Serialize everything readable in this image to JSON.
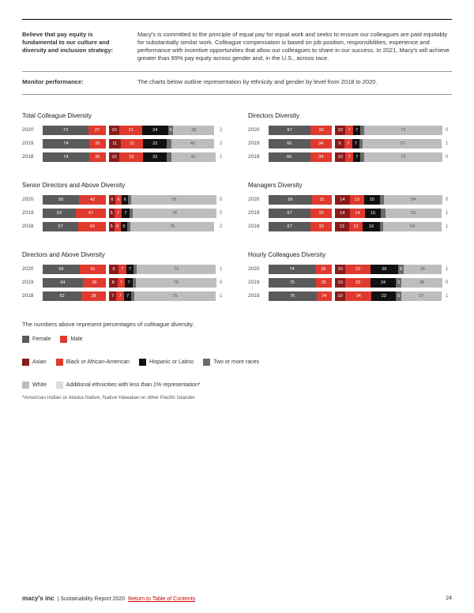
{
  "colors": {
    "female": "#5a5a5a",
    "male": "#e03a2f",
    "asian": "#8a1c1c",
    "black": "#e03a2f",
    "hispanic": "#111111",
    "two": "#6b6b6b",
    "white": "#bdbdbd",
    "other": "#dcdcdc"
  },
  "intro": {
    "label1": "Believe that pay equity is fundamental to our culture and diversity and inclusion strategy:",
    "text1": "Macy's is committed to the principle of equal pay for equal work and seeks to ensure our colleagues are paid equitably for substantially similar work. Colleague compensation is based on job position, responsibilities, experience and performance with incentive opportunities that allow our colleagues to share in our success. In 2021, Macy's will achieve greater than 99% pay equity across gender and, in the U.S., across race.",
    "label2": "Monitor performance:",
    "text2": "The charts below outline representation by ethnicity and gender by level from 2018 to 2020."
  },
  "bar_widths": {
    "gender": 80,
    "ethnicity": 130
  },
  "charts": [
    {
      "title": "Total Colleague Diversity",
      "rows": [
        {
          "year": "2020",
          "gender": {
            "female": 73,
            "male": 27
          },
          "eth": {
            "asian": 10,
            "black": 21,
            "hispanic": 24,
            "two": 5,
            "white": 38
          },
          "rem": 2
        },
        {
          "year": "2019",
          "gender": {
            "female": 74,
            "male": 26
          },
          "eth": {
            "asian": 11,
            "black": 21,
            "hispanic": 22,
            "two": 4,
            "white": 40
          },
          "rem": 2
        },
        {
          "year": "2018",
          "gender": {
            "female": 74,
            "male": 26
          },
          "eth": {
            "asian": 10,
            "black": 22,
            "hispanic": 22,
            "two": 4,
            "white": 41
          },
          "rem": 1
        }
      ]
    },
    {
      "title": "Directors Diversity",
      "rows": [
        {
          "year": "2020",
          "gender": {
            "female": 67,
            "male": 33
          },
          "eth": {
            "asian": 10,
            "black": 7,
            "hispanic": 7,
            "two": 3,
            "white": 73
          },
          "rem": 0
        },
        {
          "year": "2019",
          "gender": {
            "female": 66,
            "male": 34
          },
          "eth": {
            "asian": 9,
            "black": 7,
            "hispanic": 7,
            "two": 3,
            "white": 73
          },
          "rem": 1
        },
        {
          "year": "2018",
          "gender": {
            "female": 66,
            "male": 34
          },
          "eth": {
            "asian": 10,
            "black": 7,
            "hispanic": 7,
            "two": 3,
            "white": 73
          },
          "rem": 0
        }
      ]
    },
    {
      "title": "Senior Directors and Above Diversity",
      "rows": [
        {
          "year": "2020",
          "gender": {
            "female": 58,
            "male": 42
          },
          "eth": {
            "asian": 6,
            "black": 6,
            "hispanic": 6,
            "two": 3,
            "white": 79
          },
          "rem": 0
        },
        {
          "year": "2019",
          "gender": {
            "female": 53,
            "male": 47
          },
          "eth": {
            "asian": 5,
            "black": 7,
            "hispanic": 7,
            "two": 3,
            "white": 78
          },
          "rem": 0
        },
        {
          "year": "2018",
          "gender": {
            "female": 57,
            "male": 43
          },
          "eth": {
            "asian": 5,
            "black": 6,
            "hispanic": 6,
            "two": 3,
            "white": 78
          },
          "rem": 2
        }
      ]
    },
    {
      "title": "Managers Diversity",
      "rows": [
        {
          "year": "2020",
          "gender": {
            "female": 69,
            "male": 31
          },
          "eth": {
            "asian": 14,
            "black": 13,
            "hispanic": 15,
            "two": 4,
            "white": 54
          },
          "rem": 0
        },
        {
          "year": "2019",
          "gender": {
            "female": 67,
            "male": 33
          },
          "eth": {
            "asian": 14,
            "black": 14,
            "hispanic": 15,
            "two": 4,
            "white": 52
          },
          "rem": 1
        },
        {
          "year": "2018",
          "gender": {
            "female": 67,
            "male": 33
          },
          "eth": {
            "asian": 13,
            "black": 13,
            "hispanic": 16,
            "two": 3,
            "white": 54
          },
          "rem": 1
        }
      ]
    },
    {
      "title": "Directors and Above Diversity",
      "rows": [
        {
          "year": "2020",
          "gender": {
            "female": 59,
            "male": 41
          },
          "eth": {
            "asian": 9,
            "black": 7,
            "hispanic": 7,
            "two": 3,
            "white": 73
          },
          "rem": 1
        },
        {
          "year": "2019",
          "gender": {
            "female": 64,
            "male": 36
          },
          "eth": {
            "asian": 8,
            "black": 7,
            "hispanic": 7,
            "two": 3,
            "white": 75
          },
          "rem": 0
        },
        {
          "year": "2018",
          "gender": {
            "female": 62,
            "male": 38
          },
          "eth": {
            "asian": 7,
            "black": 7,
            "hispanic": 7,
            "two": 3,
            "white": 75
          },
          "rem": 1
        }
      ]
    },
    {
      "title": "Hourly Colleagues Diversity",
      "rows": [
        {
          "year": "2020",
          "gender": {
            "female": 74,
            "male": 26
          },
          "eth": {
            "asian": 10,
            "black": 23,
            "hispanic": 26,
            "two": 5,
            "white": 35
          },
          "rem": 1
        },
        {
          "year": "2019",
          "gender": {
            "female": 75,
            "male": 25
          },
          "eth": {
            "asian": 10,
            "black": 23,
            "hispanic": 24,
            "two": 5,
            "white": 38
          },
          "rem": 0
        },
        {
          "year": "2018",
          "gender": {
            "female": 76,
            "male": 24
          },
          "eth": {
            "asian": 10,
            "black": 24,
            "hispanic": 23,
            "two": 5,
            "white": 37
          },
          "rem": 1
        }
      ]
    }
  ],
  "note": "The numbers above represent percentages of colleague diversity.",
  "legend": [
    {
      "label": "Female",
      "colorKey": "female"
    },
    {
      "label": "Male",
      "colorKey": "male"
    },
    {
      "label": "Asian",
      "colorKey": "asian"
    },
    {
      "label": "Black or African-American",
      "colorKey": "black"
    },
    {
      "label": "Hispanic or Latino",
      "colorKey": "hispanic"
    },
    {
      "label": "Two or more races",
      "colorKey": "two"
    },
    {
      "label": "White",
      "colorKey": "white"
    },
    {
      "label": "Additional ethnicities with less than 1% representation*",
      "colorKey": "other"
    }
  ],
  "footnote": "*American Indian or Alaska Native, Native Hawaiian or other Pacific Islander",
  "footer": {
    "brand": "macy's inc",
    "report": "| Sustainability Report 2020",
    "toc": "Return to Table of Contents",
    "page": "24"
  }
}
